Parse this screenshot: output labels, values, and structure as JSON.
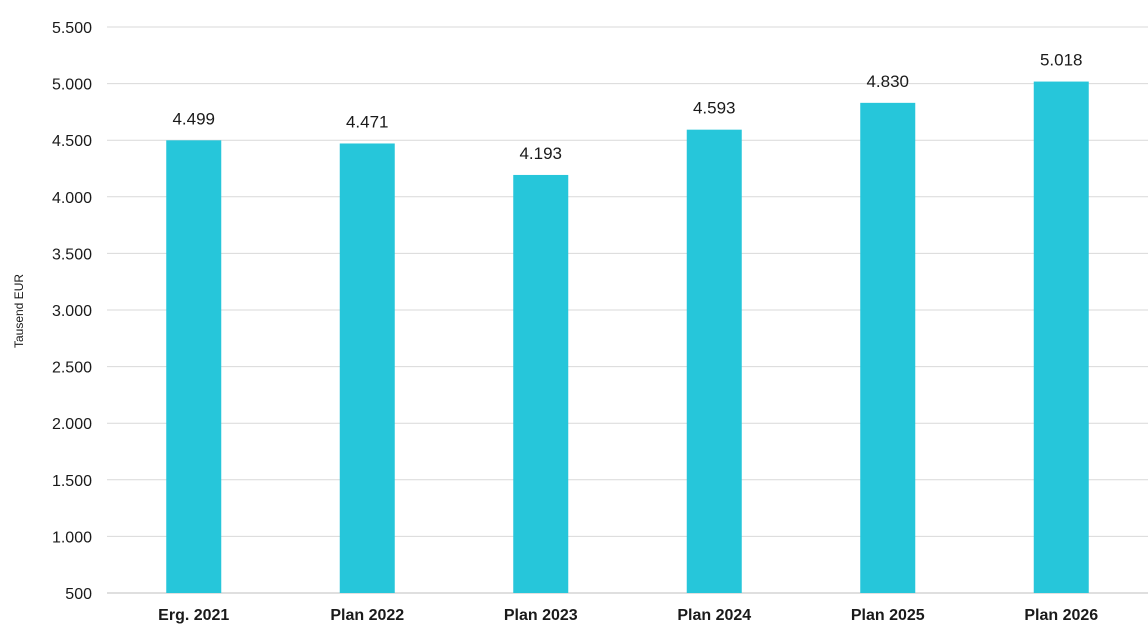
{
  "chart_data": {
    "type": "bar",
    "title": "",
    "xlabel": "",
    "ylabel": "Tausend EUR",
    "categories": [
      "Erg. 2021",
      "Plan 2022",
      "Plan 2023",
      "Plan 2024",
      "Plan 2025",
      "Plan 2026"
    ],
    "values": [
      4499,
      4471,
      4193,
      4593,
      4830,
      5018
    ],
    "data_labels": [
      "4.499",
      "4.471",
      "4.193",
      "4.593",
      "4.830",
      "5.018"
    ],
    "ylim": [
      500,
      5500
    ],
    "yticks": [
      500,
      1000,
      1500,
      2000,
      2500,
      3000,
      3500,
      4000,
      4500,
      5000,
      5500
    ],
    "ytick_labels": [
      "500",
      "1.000",
      "1.500",
      "2.000",
      "2.500",
      "3.000",
      "3.500",
      "4.000",
      "4.500",
      "5.000",
      "5.500"
    ],
    "bar_color": "#26C6DA",
    "grid": true,
    "legend": "none"
  }
}
